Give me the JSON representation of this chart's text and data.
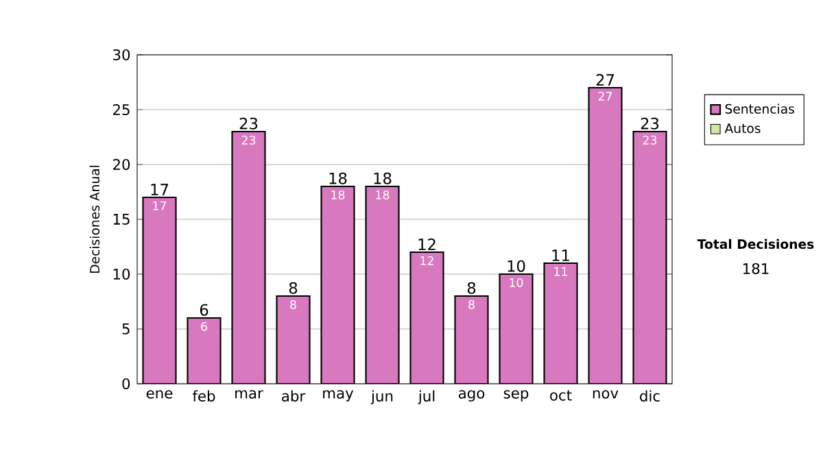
{
  "chart_data": {
    "type": "bar",
    "ylabel": "Decisiones Anual",
    "categories": [
      "ene",
      "feb",
      "mar",
      "abr",
      "may",
      "jun",
      "jul",
      "ago",
      "sep",
      "oct",
      "nov",
      "dic"
    ],
    "series": [
      {
        "name": "Sentencias",
        "color": "#d878bf",
        "values": [
          17,
          6,
          23,
          8,
          18,
          18,
          12,
          8,
          10,
          11,
          27,
          23
        ]
      },
      {
        "name": "Autos",
        "color": "#d4e8a0",
        "values": [
          null,
          null,
          null,
          null,
          null,
          null,
          null,
          null,
          null,
          null,
          null,
          null
        ]
      }
    ],
    "stacked": true,
    "data_labels": true,
    "totals": [
      "17",
      "6",
      "23",
      "8",
      "18",
      "18",
      "12",
      "8",
      "10",
      "11",
      "27",
      "23"
    ],
    "ylim": [
      0,
      30
    ],
    "yticks": [
      0,
      5,
      10,
      15,
      20,
      25,
      30
    ],
    "grid": "y",
    "legend": "right",
    "annotations": [
      "Total Decisiones",
      "181"
    ]
  }
}
